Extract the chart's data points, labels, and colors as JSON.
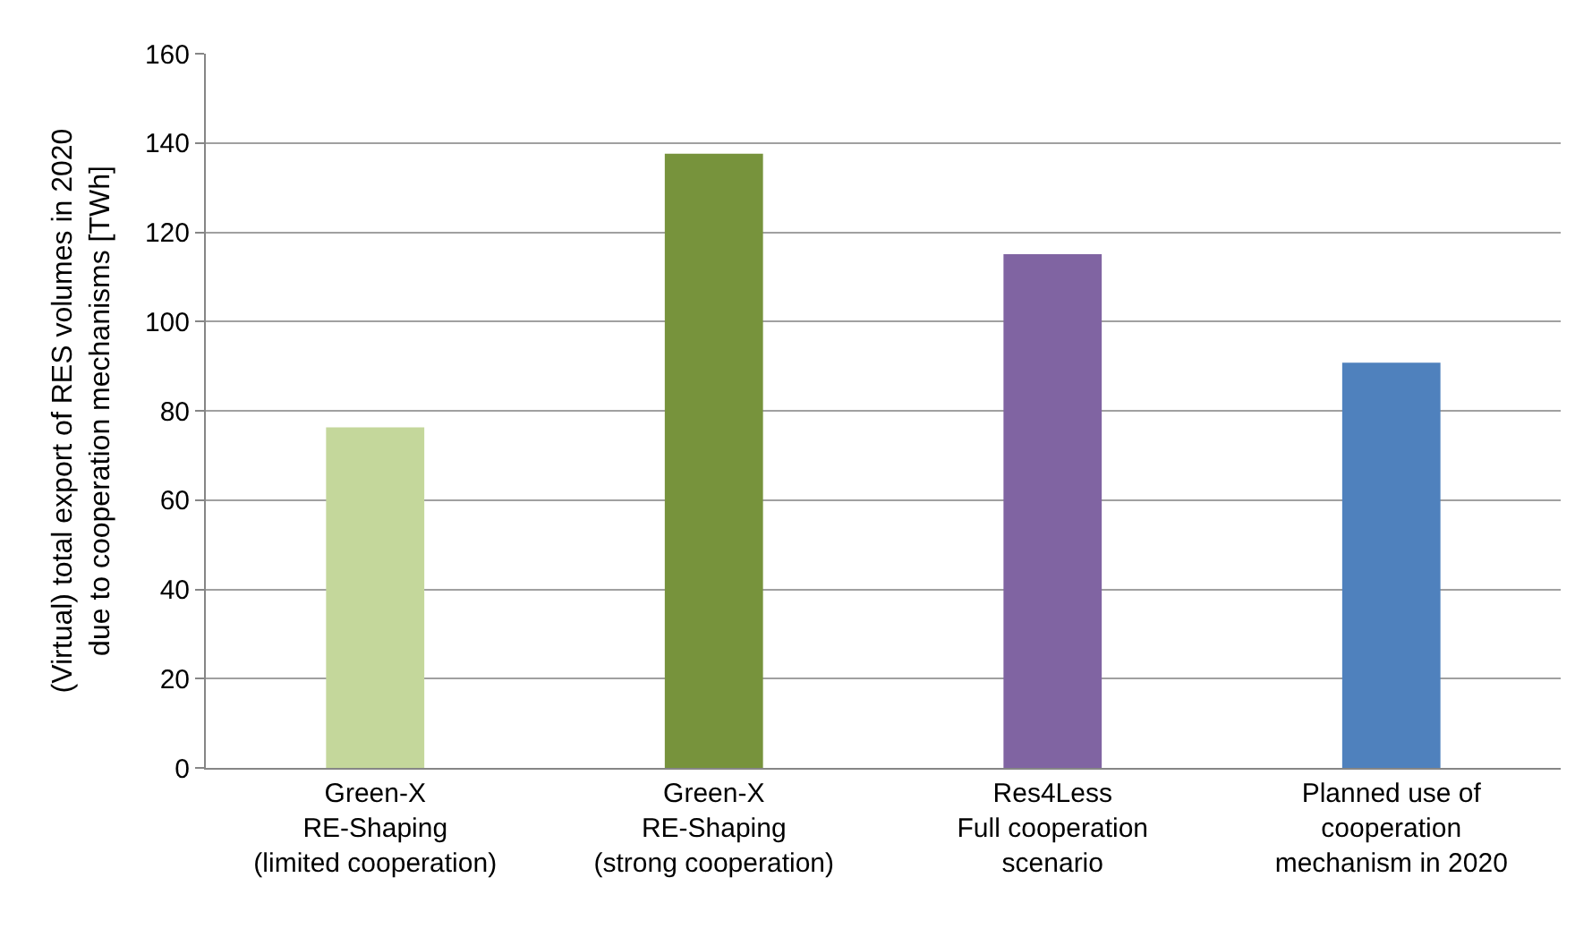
{
  "chart_data": {
    "type": "bar",
    "ylabel": "(Virtual) total export of RES volumes in 2020\ndue to cooperation mechanisms [TWh]",
    "categories": [
      "Green-X\nRE-Shaping\n(limited cooperation)",
      "Green-X\nRE-Shaping\n(strong cooperation)",
      "Res4Less\nFull cooperation\nscenario",
      "Planned use of\ncooperation\nmechanism in 2020"
    ],
    "values": [
      76.3,
      137.6,
      115.1,
      90.8
    ],
    "colors": [
      "#c4d79b",
      "#77933c",
      "#8064a2",
      "#4f81bd"
    ],
    "ylim": [
      0,
      160
    ],
    "yticks": [
      0,
      20,
      40,
      60,
      80,
      100,
      120,
      140,
      160
    ],
    "grid": "y"
  }
}
